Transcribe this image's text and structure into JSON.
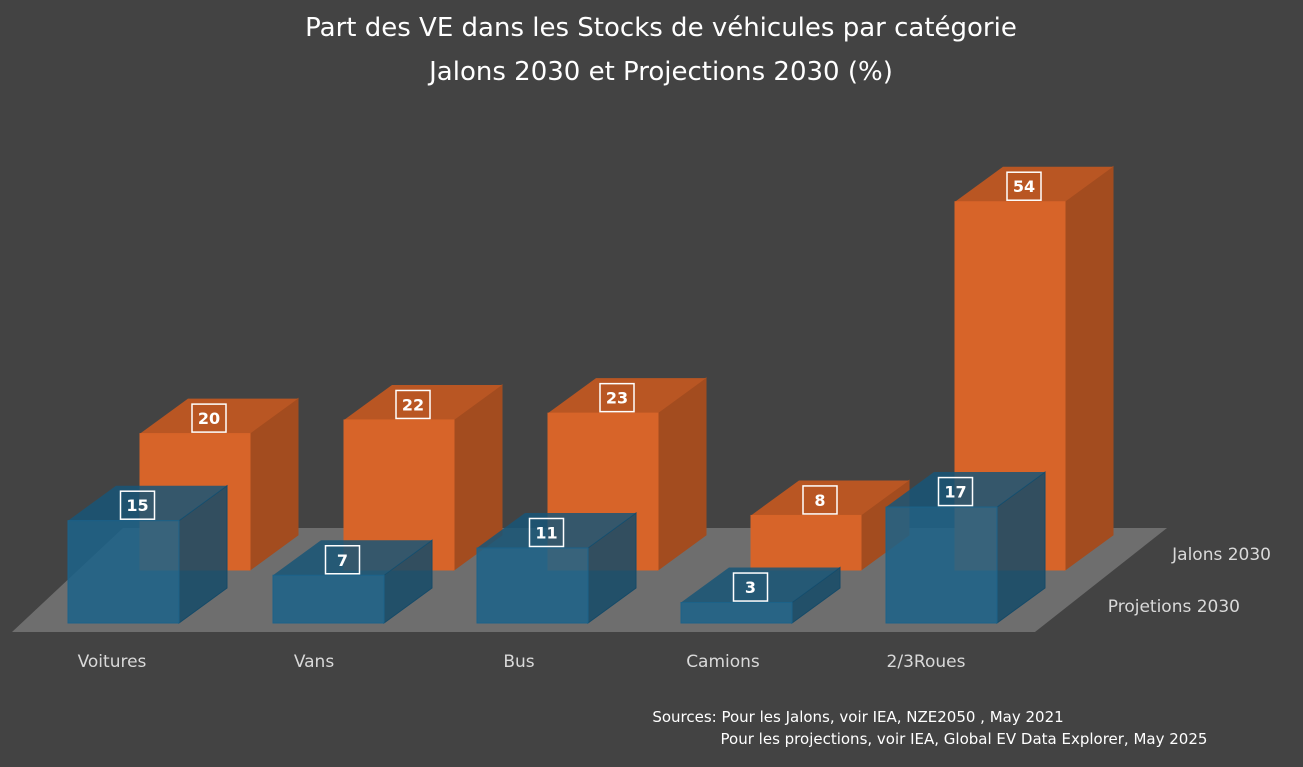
{
  "chart_data": {
    "type": "bar",
    "title": "Part des VE dans les Stocks de véhicules par catégorie",
    "subtitle": "Jalons 2030 et Projections 2030 (%)",
    "categories": [
      "Voitures",
      "Vans",
      "Bus",
      "Camions",
      "2/3Roues"
    ],
    "series": [
      {
        "name": "Jalons 2030",
        "values": [
          20,
          22,
          23,
          8,
          54
        ],
        "color": "#E2692B"
      },
      {
        "name": "Projetions 2030",
        "values": [
          15,
          7,
          11,
          3,
          17
        ],
        "color": "#1D6790"
      }
    ],
    "grid": false,
    "legend": "right",
    "sources": [
      "Sources: Pour les Jalons, voir IEA, NZE2050 , May 2021",
      "Pour les projections, voir IEA, Global EV Data Explorer, May 2025"
    ]
  },
  "colors": {
    "background": "#434343",
    "text": "#FFFFFF",
    "axis_text": "#D9D9D9",
    "floor": "#767676"
  }
}
